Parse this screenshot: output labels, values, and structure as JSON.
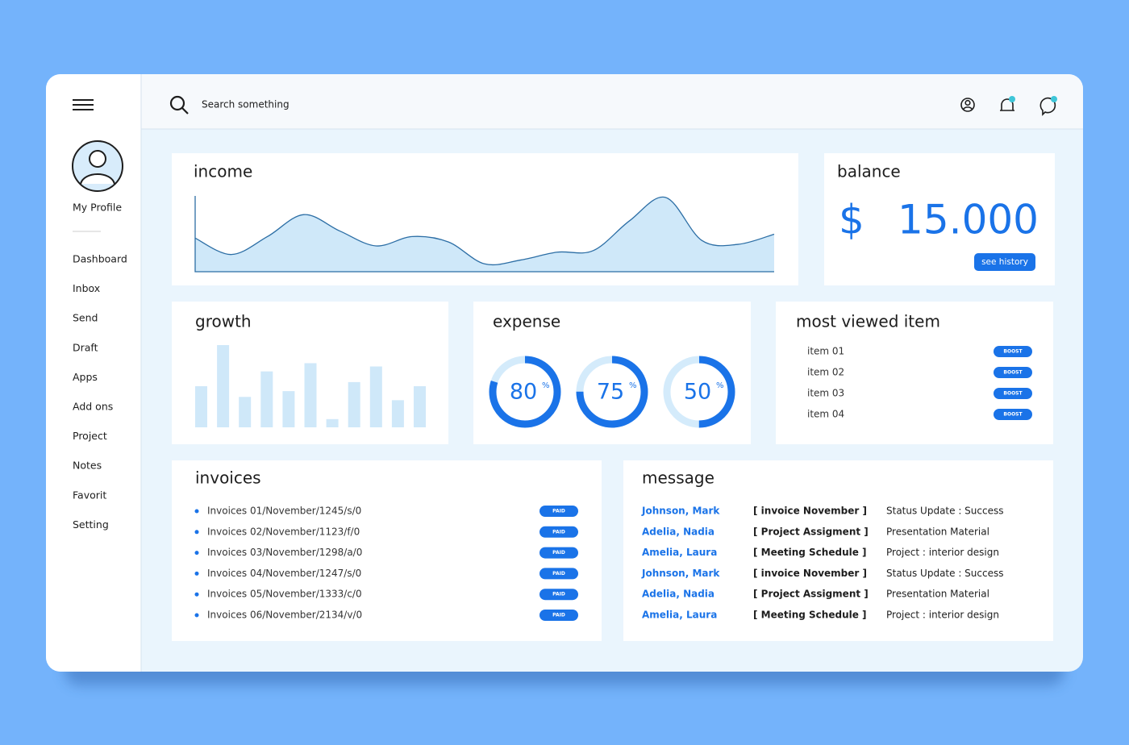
{
  "sidebar": {
    "profile": "My Profile",
    "menu": [
      "Dashboard",
      "Inbox",
      "Send",
      "Draft",
      "Apps",
      "Add ons",
      "Project",
      "Notes",
      "Favorit",
      "Setting"
    ]
  },
  "topbar": {
    "search": "Search something"
  },
  "income": {
    "title": "income",
    "values": [
      43,
      22,
      45,
      73,
      52,
      33,
      45,
      38,
      10,
      15,
      25,
      27,
      65,
      95,
      40,
      35,
      48
    ]
  },
  "balance": {
    "title": "balance",
    "currency": "$",
    "amount": "15.000",
    "button": "see history"
  },
  "growth": {
    "title": "growth",
    "values": [
      50,
      100,
      37,
      68,
      44,
      78,
      10,
      55,
      74,
      33,
      50
    ]
  },
  "expense": {
    "title": "expense",
    "items": [
      {
        "value": 80,
        "unit": "%"
      },
      {
        "value": 75,
        "unit": "%"
      },
      {
        "value": 50,
        "unit": "%"
      }
    ]
  },
  "most_viewed": {
    "title": "most viewed item",
    "items": [
      {
        "label": "item 01",
        "button": "BOOST"
      },
      {
        "label": "item 02",
        "button": "BOOST"
      },
      {
        "label": "item 03",
        "button": "BOOST"
      },
      {
        "label": "item 04",
        "button": "BOOST"
      }
    ]
  },
  "invoices": {
    "title": "invoices",
    "items": [
      {
        "label": "Invoices 01/November/1245/s/0",
        "status": "PAID"
      },
      {
        "label": "Invoices 02/November/1123/f/0",
        "status": "PAID"
      },
      {
        "label": "Invoices 03/November/1298/a/0",
        "status": "PAID"
      },
      {
        "label": "Invoices 04/November/1247/s/0",
        "status": "PAID"
      },
      {
        "label": "Invoices 05/November/1333/c/0",
        "status": "PAID"
      },
      {
        "label": "Invoices 06/November/2134/v/0",
        "status": "PAID"
      }
    ]
  },
  "messages": {
    "title": "message",
    "rows": [
      [
        "Johnson, Mark",
        "[ invoice November ]",
        "Status Update : Success"
      ],
      [
        "Adelia, Nadia",
        "[ Project Assigment ]",
        "Presentation Material"
      ],
      [
        "Amelia, Laura",
        "[ Meeting Schedule ]",
        "Project : interior design"
      ],
      [
        "Johnson, Mark",
        "[ invoice November ]",
        "Status Update : Success"
      ],
      [
        "Adelia, Nadia",
        "[ Project Assigment ]",
        "Presentation Material"
      ],
      [
        "Amelia, Laura",
        "[ Meeting Schedule ]",
        "Project : interior design"
      ]
    ]
  }
}
